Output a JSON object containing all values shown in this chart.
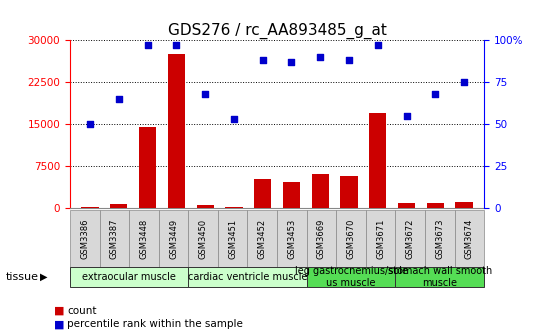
{
  "title": "GDS276 / rc_AA893485_g_at",
  "samples": [
    "GSM3386",
    "GSM3387",
    "GSM3448",
    "GSM3449",
    "GSM3450",
    "GSM3451",
    "GSM3452",
    "GSM3453",
    "GSM3669",
    "GSM3670",
    "GSM3671",
    "GSM3672",
    "GSM3673",
    "GSM3674"
  ],
  "counts": [
    200,
    700,
    14500,
    27500,
    600,
    200,
    5200,
    4700,
    6200,
    5700,
    17000,
    900,
    900,
    1100
  ],
  "percentiles": [
    50,
    65,
    97,
    97,
    68,
    53,
    88,
    87,
    90,
    88,
    97,
    55,
    68,
    75
  ],
  "ylim_left": [
    0,
    30000
  ],
  "ylim_right": [
    0,
    100
  ],
  "yticks_left": [
    0,
    7500,
    15000,
    22500,
    30000
  ],
  "yticks_right": [
    0,
    25,
    50,
    75,
    100
  ],
  "bar_color": "#cc0000",
  "dot_color": "#0000cc",
  "tissue_groups": [
    {
      "label": "extraocular muscle",
      "start": 0,
      "end": 4,
      "color": "#ccffcc"
    },
    {
      "label": "cardiac ventricle muscle",
      "start": 4,
      "end": 8,
      "color": "#ccffcc"
    },
    {
      "label": "leg gastrocnemius/sole\nus muscle",
      "start": 8,
      "end": 11,
      "color": "#55dd55"
    },
    {
      "label": "stomach wall smooth\nmuscle",
      "start": 11,
      "end": 14,
      "color": "#55dd55"
    }
  ],
  "tissue_label": "tissue",
  "legend_count_label": "count",
  "legend_pct_label": "percentile rank within the sample",
  "title_fontsize": 11,
  "tick_fontsize": 7.5,
  "sample_fontsize": 6,
  "tissue_fontsize": 7,
  "legend_fontsize": 7.5
}
